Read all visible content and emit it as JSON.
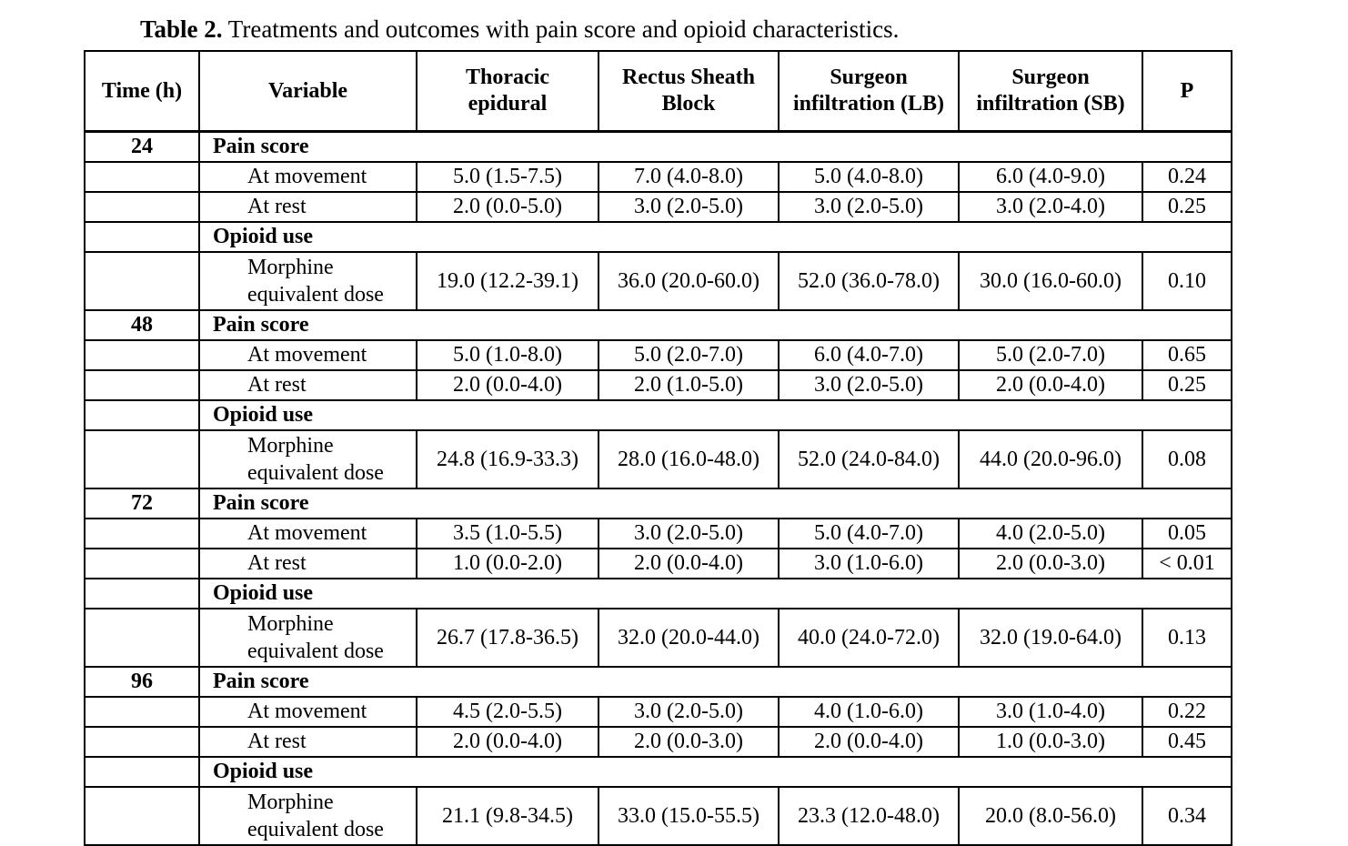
{
  "page": {
    "background_color": "#ffffff",
    "text_color": "#000000",
    "border_color": "#000000"
  },
  "title": {
    "label": "Table 2.",
    "text": " Treatments and outcomes with pain score and opioid characteristics."
  },
  "table": {
    "columns": [
      "Time (h)",
      "Variable",
      "Thoracic epidural",
      "Rectus Sheath Block",
      "Surgeon infiltration (LB)",
      "Surgeon infiltration (SB)",
      "P"
    ],
    "groups": [
      {
        "time": "24",
        "sections": [
          {
            "header": "Pain score",
            "rows": [
              {
                "variable": "At movement",
                "tall": false,
                "values": [
                  "5.0 (1.5-7.5)",
                  "7.0 (4.0-8.0)",
                  "5.0 (4.0-8.0)",
                  "6.0 (4.0-9.0)"
                ],
                "p": "0.24"
              },
              {
                "variable": "At rest",
                "tall": false,
                "values": [
                  "2.0 (0.0-5.0)",
                  "3.0 (2.0-5.0)",
                  "3.0 (2.0-5.0)",
                  "3.0 (2.0-4.0)"
                ],
                "p": "0.25"
              }
            ]
          },
          {
            "header": "Opioid use",
            "rows": [
              {
                "variable": "Morphine equivalent dose",
                "tall": true,
                "values": [
                  "19.0 (12.2-39.1)",
                  "36.0 (20.0-60.0)",
                  "52.0 (36.0-78.0)",
                  "30.0 (16.0-60.0)"
                ],
                "p": "0.10"
              }
            ]
          }
        ]
      },
      {
        "time": "48",
        "sections": [
          {
            "header": "Pain score",
            "rows": [
              {
                "variable": "At movement",
                "tall": false,
                "values": [
                  "5.0 (1.0-8.0)",
                  "5.0 (2.0-7.0)",
                  "6.0 (4.0-7.0)",
                  "5.0 (2.0-7.0)"
                ],
                "p": "0.65"
              },
              {
                "variable": "At rest",
                "tall": false,
                "values": [
                  "2.0 (0.0-4.0)",
                  "2.0 (1.0-5.0)",
                  "3.0 (2.0-5.0)",
                  "2.0 (0.0-4.0)"
                ],
                "p": "0.25"
              }
            ]
          },
          {
            "header": "Opioid use",
            "rows": [
              {
                "variable": "Morphine equivalent dose",
                "tall": true,
                "values": [
                  "24.8 (16.9-33.3)",
                  "28.0 (16.0-48.0)",
                  "52.0 (24.0-84.0)",
                  "44.0 (20.0-96.0)"
                ],
                "p": "0.08"
              }
            ]
          }
        ]
      },
      {
        "time": "72",
        "sections": [
          {
            "header": "Pain score",
            "rows": [
              {
                "variable": "At movement",
                "tall": false,
                "values": [
                  "3.5 (1.0-5.5)",
                  "3.0 (2.0-5.0)",
                  "5.0 (4.0-7.0)",
                  "4.0 (2.0-5.0)"
                ],
                "p": "0.05"
              },
              {
                "variable": "At rest",
                "tall": false,
                "values": [
                  "1.0 (0.0-2.0)",
                  "2.0 (0.0-4.0)",
                  "3.0 (1.0-6.0)",
                  "2.0 (0.0-3.0)"
                ],
                "p": "< 0.01"
              }
            ]
          },
          {
            "header": "Opioid use",
            "rows": [
              {
                "variable": "Morphine equivalent dose",
                "tall": true,
                "values": [
                  "26.7 (17.8-36.5)",
                  "32.0 (20.0-44.0)",
                  "40.0 (24.0-72.0)",
                  "32.0 (19.0-64.0)"
                ],
                "p": "0.13"
              }
            ]
          }
        ]
      },
      {
        "time": "96",
        "sections": [
          {
            "header": "Pain score",
            "rows": [
              {
                "variable": "At movement",
                "tall": false,
                "values": [
                  "4.5 (2.0-5.5)",
                  "3.0 (2.0-5.0)",
                  "4.0 (1.0-6.0)",
                  "3.0 (1.0-4.0)"
                ],
                "p": "0.22"
              },
              {
                "variable": "At rest",
                "tall": false,
                "values": [
                  "2.0 (0.0-4.0)",
                  "2.0 (0.0-3.0)",
                  "2.0 (0.0-4.0)",
                  "1.0 (0.0-3.0)"
                ],
                "p": "0.45"
              }
            ]
          },
          {
            "header": "Opioid use",
            "rows": [
              {
                "variable": "Morphine equivalent dose",
                "tall": true,
                "values": [
                  "21.1 (9.8-34.5)",
                  "33.0 (15.0-55.5)",
                  "23.3 (12.0-48.0)",
                  "20.0 (8.0-56.0)"
                ],
                "p": "0.34"
              }
            ]
          }
        ]
      }
    ]
  }
}
